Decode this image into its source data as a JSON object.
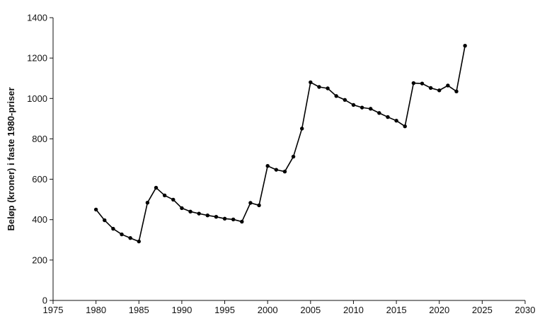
{
  "chart_data": {
    "type": "line",
    "title": "",
    "xlabel": "",
    "ylabel": "Beløp (kroner) i faste 1980-priser",
    "xlim": [
      1975,
      2030
    ],
    "ylim": [
      0,
      1400
    ],
    "x_ticks": [
      1975,
      1980,
      1985,
      1990,
      1995,
      2000,
      2005,
      2010,
      2015,
      2020,
      2025,
      2030
    ],
    "y_ticks": [
      0,
      200,
      400,
      600,
      800,
      1000,
      1200,
      1400
    ],
    "grid": false,
    "legend": "none",
    "series": [
      {
        "color": "#000000",
        "marker": "circle",
        "x": [
          1980,
          1981,
          1982,
          1983,
          1984,
          1985,
          1986,
          1987,
          1988,
          1989,
          1990,
          1991,
          1992,
          1993,
          1994,
          1995,
          1996,
          1997,
          1998,
          1999,
          2000,
          2001,
          2002,
          2003,
          2004,
          2005,
          2006,
          2007,
          2008,
          2009,
          2010,
          2011,
          2012,
          2013,
          2014,
          2015,
          2016,
          2017,
          2018,
          2019,
          2020,
          2021,
          2022,
          2023
        ],
        "y": [
          450,
          397,
          355,
          327,
          309,
          292,
          484,
          558,
          520,
          499,
          457,
          440,
          430,
          421,
          414,
          405,
          401,
          390,
          483,
          471,
          666,
          647,
          638,
          712,
          851,
          1080,
          1057,
          1050,
          1012,
          993,
          968,
          955,
          949,
          928,
          908,
          890,
          862,
          1076,
          1074,
          1052,
          1040,
          1064,
          1035,
          1261
        ]
      }
    ]
  }
}
